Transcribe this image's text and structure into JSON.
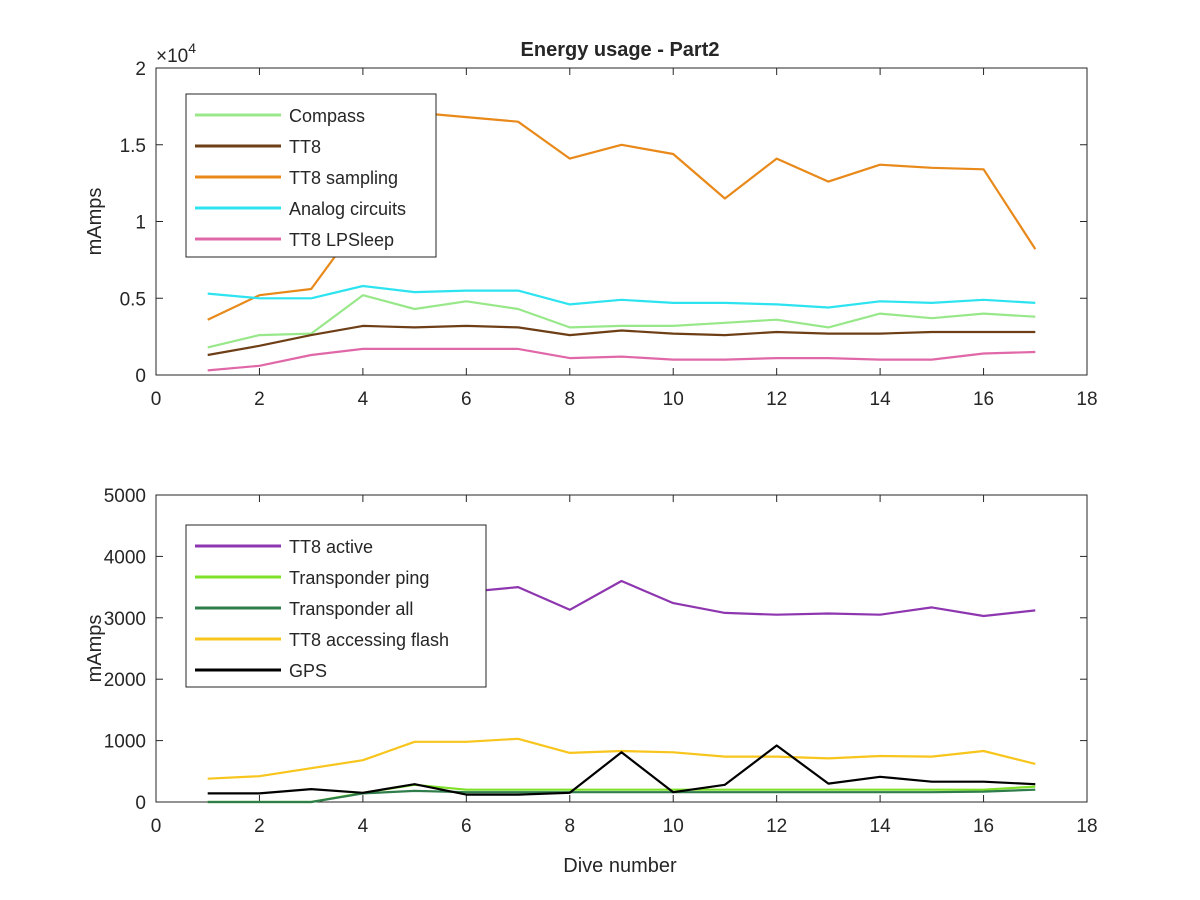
{
  "figure": {
    "title": "Energy usage - Part2",
    "x_label": "Dive number"
  },
  "chart_data": [
    {
      "type": "line",
      "title": "Energy usage - Part2",
      "xlabel": "",
      "ylabel": "mAmps",
      "xlim": [
        0,
        18
      ],
      "ylim": [
        0,
        20000
      ],
      "x_ticks": [
        0,
        2,
        4,
        6,
        8,
        10,
        12,
        14,
        16,
        18
      ],
      "y_ticks": [
        0,
        5000,
        10000,
        15000,
        20000
      ],
      "y_tick_labels": [
        "0",
        "0.5",
        "1",
        "1.5",
        "2"
      ],
      "y_exponent_label": "×10",
      "y_exponent_power": "4",
      "legend_position": "top-left",
      "grid": false,
      "x": [
        1,
        2,
        3,
        4,
        5,
        6,
        7,
        8,
        9,
        10,
        11,
        12,
        13,
        14,
        15,
        16,
        17
      ],
      "series": [
        {
          "name": "Compass",
          "color": "#98e88a",
          "values": [
            1800,
            2600,
            2700,
            5200,
            4300,
            4800,
            4300,
            3100,
            3200,
            3200,
            3400,
            3600,
            3100,
            4000,
            3700,
            4000,
            3800
          ]
        },
        {
          "name": "TT8",
          "color": "#6e3f16",
          "values": [
            1300,
            1900,
            2600,
            3200,
            3100,
            3200,
            3100,
            2600,
            2900,
            2700,
            2600,
            2800,
            2700,
            2700,
            2800,
            2800,
            2800
          ]
        },
        {
          "name": "TT8 sampling",
          "color": "#e8891a",
          "values": [
            3600,
            5200,
            5600,
            10200,
            17100,
            16800,
            16500,
            14100,
            15000,
            14400,
            11500,
            14100,
            12600,
            13700,
            13500,
            13400,
            8200
          ]
        },
        {
          "name": "Analog circuits",
          "color": "#2de3f0",
          "values": [
            5300,
            5000,
            5000,
            5800,
            5400,
            5500,
            5500,
            4600,
            4900,
            4700,
            4700,
            4600,
            4400,
            4800,
            4700,
            4900,
            4700
          ]
        },
        {
          "name": "TT8 LPSleep",
          "color": "#e068a8",
          "values": [
            300,
            600,
            1300,
            1700,
            1700,
            1700,
            1700,
            1100,
            1200,
            1000,
            1000,
            1100,
            1100,
            1000,
            1000,
            1400,
            1500
          ]
        }
      ]
    },
    {
      "type": "line",
      "title": "",
      "xlabel": "Dive number",
      "ylabel": "mAmps",
      "xlim": [
        0,
        18
      ],
      "ylim": [
        0,
        5000
      ],
      "x_ticks": [
        0,
        2,
        4,
        6,
        8,
        10,
        12,
        14,
        16,
        18
      ],
      "y_ticks": [
        0,
        1000,
        2000,
        3000,
        4000,
        5000
      ],
      "y_tick_labels": [
        "0",
        "1000",
        "2000",
        "3000",
        "4000",
        "5000"
      ],
      "legend_position": "top-left",
      "grid": false,
      "x": [
        1,
        2,
        3,
        4,
        5,
        6,
        7,
        8,
        9,
        10,
        11,
        12,
        13,
        14,
        15,
        16,
        17
      ],
      "series": [
        {
          "name": "TT8 active",
          "color": "#8e36b0",
          "values": [
            3650,
            3600,
            3600,
            3550,
            3500,
            3420,
            3500,
            3130,
            3600,
            3240,
            3080,
            3050,
            3070,
            3050,
            3170,
            3030,
            3120
          ]
        },
        {
          "name": "Transponder ping",
          "color": "#7fe028",
          "values": [
            0,
            0,
            0,
            150,
            280,
            200,
            200,
            200,
            200,
            200,
            200,
            200,
            200,
            200,
            200,
            200,
            250
          ]
        },
        {
          "name": "Transponder all",
          "color": "#2e7d4a",
          "values": [
            0,
            0,
            0,
            140,
            180,
            160,
            160,
            160,
            160,
            160,
            160,
            160,
            160,
            160,
            160,
            170,
            200
          ]
        },
        {
          "name": "TT8 accessing flash",
          "color": "#f7c51c",
          "values": [
            380,
            420,
            550,
            680,
            980,
            980,
            1030,
            800,
            830,
            810,
            740,
            740,
            710,
            750,
            740,
            830,
            620
          ]
        },
        {
          "name": "GPS",
          "color": "#000000",
          "values": [
            140,
            140,
            210,
            150,
            290,
            120,
            120,
            150,
            810,
            160,
            280,
            920,
            300,
            410,
            330,
            330,
            290
          ]
        }
      ]
    }
  ]
}
